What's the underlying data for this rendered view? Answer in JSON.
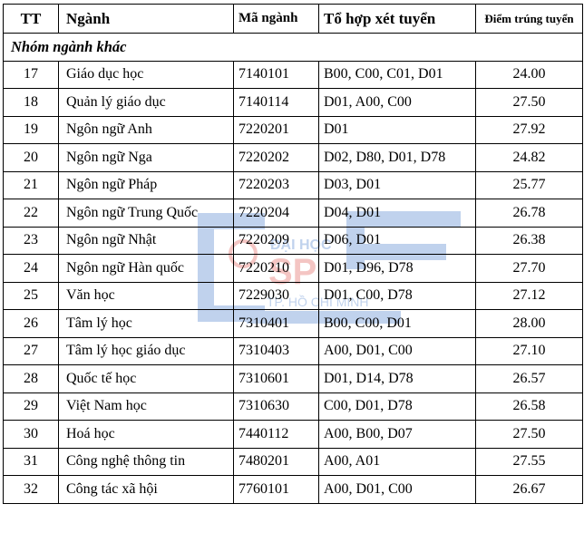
{
  "watermark": {
    "line1": "ĐẠI HỌC",
    "line2": "SP",
    "line3": "TP. HỒ CHÍ MINH",
    "color": "#1f5fbf",
    "accent": "#d9342b"
  },
  "table": {
    "headers": {
      "tt": "TT",
      "name": "Ngành",
      "code": "Mã ngành",
      "combo": "Tổ hợp xét tuyển",
      "score": "Điểm trúng tuyển"
    },
    "group_label": "Nhóm ngành khác",
    "rows": [
      {
        "tt": "17",
        "name": "Giáo dục học",
        "code": "7140101",
        "combo": "B00, C00, C01, D01",
        "score": "24.00"
      },
      {
        "tt": "18",
        "name": "Quản lý giáo dục",
        "code": "7140114",
        "combo": "D01, A00, C00",
        "score": "27.50"
      },
      {
        "tt": "19",
        "name": "Ngôn ngữ Anh",
        "code": "7220201",
        "combo": "D01",
        "score": "27.92"
      },
      {
        "tt": "20",
        "name": "Ngôn ngữ Nga",
        "code": "7220202",
        "combo": "D02, D80, D01, D78",
        "score": "24.82"
      },
      {
        "tt": "21",
        "name": "Ngôn ngữ Pháp",
        "code": "7220203",
        "combo": "D03, D01",
        "score": "25.77"
      },
      {
        "tt": "22",
        "name": "Ngôn ngữ Trung Quốc",
        "code": "7220204",
        "combo": "D04, D01",
        "score": "26.78"
      },
      {
        "tt": "23",
        "name": "Ngôn ngữ Nhật",
        "code": "7220209",
        "combo": "D06, D01",
        "score": "26.38"
      },
      {
        "tt": "24",
        "name": "Ngôn ngữ Hàn quốc",
        "code": "7220210",
        "combo": "D01, D96, D78",
        "score": "27.70"
      },
      {
        "tt": "25",
        "name": "Văn học",
        "code": "7229030",
        "combo": "D01, C00, D78",
        "score": "27.12"
      },
      {
        "tt": "26",
        "name": "Tâm lý học",
        "code": "7310401",
        "combo": "B00, C00, D01",
        "score": "28.00"
      },
      {
        "tt": "27",
        "name": "Tâm lý học giáo dục",
        "code": "7310403",
        "combo": "A00, D01, C00",
        "score": "27.10"
      },
      {
        "tt": "28",
        "name": "Quốc tế học",
        "code": "7310601",
        "combo": "D01, D14, D78",
        "score": "26.57"
      },
      {
        "tt": "29",
        "name": "Việt Nam học",
        "code": "7310630",
        "combo": "C00, D01, D78",
        "score": "26.58"
      },
      {
        "tt": "30",
        "name": "Hoá học",
        "code": "7440112",
        "combo": "A00, B00, D07",
        "score": "27.50"
      },
      {
        "tt": "31",
        "name": "Công nghệ thông tin",
        "code": "7480201",
        "combo": "A00, A01",
        "score": "27.55"
      },
      {
        "tt": "32",
        "name": "Công tác xã hội",
        "code": "7760101",
        "combo": "A00, D01, C00",
        "score": "26.67"
      }
    ]
  }
}
